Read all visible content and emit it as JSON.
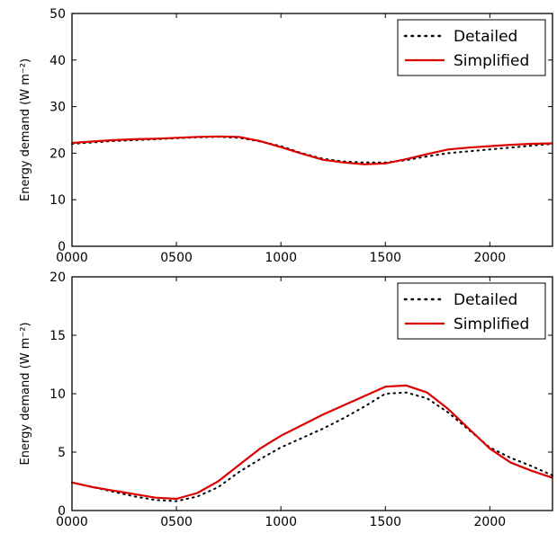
{
  "chart_data": [
    {
      "type": "line",
      "x_tick_labels": [
        "0000",
        "0500",
        "1000",
        "1500",
        "2000"
      ],
      "x_ticks": [
        0,
        500,
        1000,
        1500,
        2000
      ],
      "xlim": [
        0,
        2300
      ],
      "ylim": [
        0,
        50
      ],
      "y_ticks": [
        0,
        10,
        20,
        30,
        40,
        50
      ],
      "ylabel": "Energy demand (W m⁻²)",
      "legend_position": "top-right",
      "grid": false,
      "x": [
        0,
        100,
        200,
        300,
        400,
        500,
        600,
        700,
        800,
        900,
        1000,
        1100,
        1200,
        1300,
        1400,
        1500,
        1600,
        1700,
        1800,
        1900,
        2000,
        2100,
        2200,
        2300
      ],
      "series": [
        {
          "name": "Detailed",
          "color": "#000000",
          "style": "dotted",
          "values": [
            22.0,
            22.3,
            22.6,
            22.8,
            23.0,
            23.2,
            23.4,
            23.5,
            23.3,
            22.5,
            21.5,
            20.0,
            18.8,
            18.2,
            18.0,
            18.0,
            18.5,
            19.3,
            20.0,
            20.4,
            20.8,
            21.2,
            21.6,
            22.0
          ]
        },
        {
          "name": "Simplified",
          "color": "#dd0000",
          "style": "solid",
          "values": [
            22.2,
            22.5,
            22.8,
            23.0,
            23.1,
            23.3,
            23.5,
            23.6,
            23.5,
            22.6,
            21.3,
            19.9,
            18.6,
            18.0,
            17.6,
            17.8,
            18.7,
            19.8,
            20.8,
            21.2,
            21.5,
            21.8,
            22.0,
            22.1
          ]
        }
      ]
    },
    {
      "type": "line",
      "x_tick_labels": [
        "0000",
        "0500",
        "1000",
        "1500",
        "2000"
      ],
      "x_ticks": [
        0,
        500,
        1000,
        1500,
        2000
      ],
      "xlim": [
        0,
        2300
      ],
      "ylim": [
        0,
        20
      ],
      "y_ticks": [
        0,
        5,
        10,
        15,
        20
      ],
      "ylabel": "Energy demand (W m⁻²)",
      "legend_position": "top-right",
      "grid": false,
      "x": [
        0,
        100,
        200,
        300,
        400,
        500,
        600,
        700,
        800,
        900,
        1000,
        1100,
        1200,
        1300,
        1400,
        1500,
        1600,
        1700,
        1800,
        1900,
        2000,
        2100,
        2200,
        2300
      ],
      "series": [
        {
          "name": "Detailed",
          "color": "#000000",
          "style": "dotted",
          "values": [
            2.4,
            2.0,
            1.6,
            1.2,
            0.9,
            0.8,
            1.2,
            2.0,
            3.3,
            4.4,
            5.4,
            6.2,
            7.0,
            7.9,
            8.9,
            10.0,
            10.1,
            9.6,
            8.4,
            6.9,
            5.4,
            4.5,
            3.8,
            3.0
          ]
        },
        {
          "name": "Simplified",
          "color": "#dd0000",
          "style": "solid",
          "values": [
            2.4,
            2.0,
            1.7,
            1.4,
            1.1,
            1.0,
            1.5,
            2.5,
            3.9,
            5.3,
            6.4,
            7.3,
            8.2,
            9.0,
            9.8,
            10.6,
            10.7,
            10.1,
            8.7,
            7.0,
            5.3,
            4.1,
            3.4,
            2.8
          ]
        }
      ]
    }
  ]
}
